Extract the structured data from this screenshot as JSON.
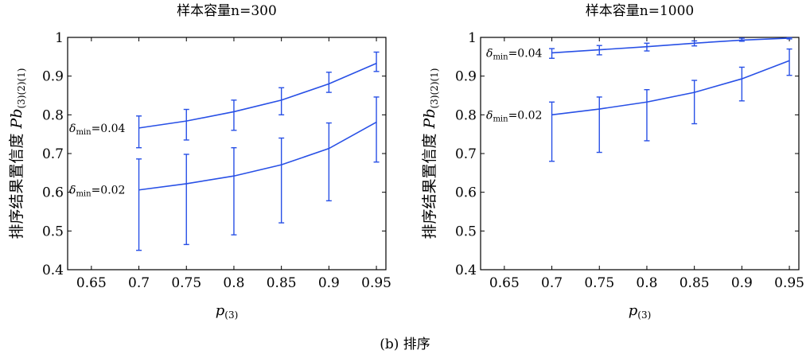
{
  "caption": "(b)  排序",
  "colors": {
    "series": "#2850e6",
    "axis": "#000000"
  },
  "chart_data": [
    {
      "type": "line",
      "title": "样本容量n=300",
      "xlabel": "p(3)",
      "xlabel_main": "p",
      "xlabel_sub": "(3)",
      "ylabel": "排序结果置信度 Pb(3)(2)(1)",
      "ylabel_main": "排序结果置信度 Pb",
      "ylabel_sub": "(3)(2)(1)",
      "xlim": [
        0.625,
        0.96
      ],
      "ylim": [
        0.4,
        1.0
      ],
      "xticks": [
        0.65,
        0.7,
        0.75,
        0.8,
        0.85,
        0.9,
        0.95
      ],
      "xtick_labels": [
        "0.65",
        "0.7",
        "0.75",
        "0.8",
        "0.85",
        "0.9",
        "0.95"
      ],
      "yticks": [
        0.4,
        0.5,
        0.6,
        0.7,
        0.8,
        0.9,
        1.0
      ],
      "ytick_labels": [
        "0.4",
        "0.5",
        "0.6",
        "0.7",
        "0.8",
        "0.9",
        "1"
      ],
      "x": [
        0.7,
        0.75,
        0.8,
        0.85,
        0.9,
        0.95
      ],
      "series": [
        {
          "name": "δmin=0.04",
          "label_main": "δ",
          "label_sub": "min",
          "label_tail": "=0.04",
          "values": [
            0.766,
            0.784,
            0.808,
            0.838,
            0.88,
            0.933
          ],
          "err_low": [
            0.715,
            0.735,
            0.76,
            0.8,
            0.858,
            0.912
          ],
          "err_high": [
            0.797,
            0.814,
            0.838,
            0.87,
            0.91,
            0.962
          ]
        },
        {
          "name": "δmin=0.02",
          "label_main": "δ",
          "label_sub": "min",
          "label_tail": "=0.02",
          "values": [
            0.606,
            0.622,
            0.642,
            0.671,
            0.713,
            0.781
          ],
          "err_low": [
            0.45,
            0.465,
            0.49,
            0.521,
            0.578,
            0.678
          ],
          "err_high": [
            0.686,
            0.698,
            0.715,
            0.74,
            0.779,
            0.846
          ]
        }
      ]
    },
    {
      "type": "line",
      "title": "样本容量n=1000",
      "xlabel": "p(3)",
      "xlabel_main": "p",
      "xlabel_sub": "(3)",
      "ylabel": "排序结果置信度 Pb(3)(2)(1)",
      "ylabel_main": "排序结果置信度 Pb",
      "ylabel_sub": "(3)(2)(1)",
      "xlim": [
        0.625,
        0.96
      ],
      "ylim": [
        0.4,
        1.0
      ],
      "xticks": [
        0.65,
        0.7,
        0.75,
        0.8,
        0.85,
        0.9,
        0.95
      ],
      "xtick_labels": [
        "0.65",
        "0.7",
        "0.75",
        "0.8",
        "0.85",
        "0.9",
        "0.95"
      ],
      "yticks": [
        0.4,
        0.5,
        0.6,
        0.7,
        0.8,
        0.9,
        1.0
      ],
      "ytick_labels": [
        "0.4",
        "0.5",
        "0.6",
        "0.7",
        "0.8",
        "0.9",
        "1"
      ],
      "x": [
        0.7,
        0.75,
        0.8,
        0.85,
        0.9,
        0.95
      ],
      "series": [
        {
          "name": "δmin=0.04",
          "label_main": "δ",
          "label_sub": "min",
          "label_tail": "=0.04",
          "values": [
            0.96,
            0.968,
            0.976,
            0.985,
            0.993,
            0.998
          ],
          "err_low": [
            0.946,
            0.955,
            0.965,
            0.978,
            0.99,
            0.996
          ],
          "err_high": [
            0.971,
            0.979,
            0.985,
            0.991,
            0.998,
            0.999
          ]
        },
        {
          "name": "δmin=0.02",
          "label_main": "δ",
          "label_sub": "min",
          "label_tail": "=0.02",
          "values": [
            0.8,
            0.815,
            0.833,
            0.858,
            0.893,
            0.94
          ],
          "err_low": [
            0.68,
            0.703,
            0.733,
            0.777,
            0.836,
            0.902
          ],
          "err_high": [
            0.833,
            0.846,
            0.865,
            0.889,
            0.923,
            0.97
          ]
        }
      ]
    }
  ]
}
